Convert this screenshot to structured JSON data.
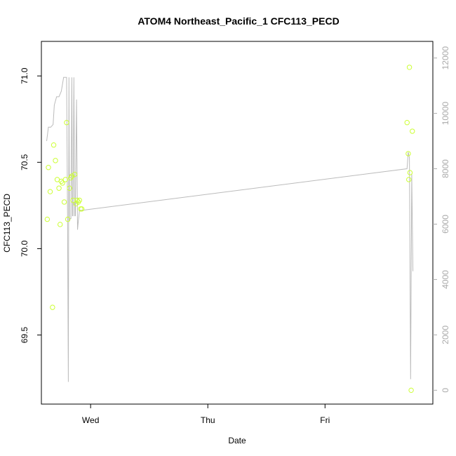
{
  "chart_data": {
    "type": "scatter",
    "title": "ATOM4 Northeast_Pacific_1 CFC113_PECD",
    "xlabel": "Date",
    "ylabel": "CFC113_PECD",
    "x_tick_labels": [
      "Wed",
      "Thu",
      "Fri"
    ],
    "x_tick_days": [
      0,
      1,
      2
    ],
    "xlim_days": [
      -0.42,
      2.92
    ],
    "ylim": [
      69.1,
      71.2
    ],
    "y_ticks": [
      69.5,
      70.0,
      70.5,
      71.0
    ],
    "y_tick_labels": [
      "69.5",
      "70.0",
      "70.5",
      "71.0"
    ],
    "y2_ticks": [
      0,
      2000,
      4000,
      6000,
      8000,
      10000,
      12000
    ],
    "y2_tick_labels": [
      "0",
      "2000",
      "4000",
      "6000",
      "8000",
      "10000",
      "12000"
    ],
    "y2lim": [
      -500,
      12600
    ],
    "colors": {
      "points": "#ccff33",
      "line": "#bbbbbb",
      "axis": "#000000",
      "right_axis": "#aaaaaa"
    },
    "series": [
      {
        "kind": "points",
        "x": [
          -0.37,
          -0.36,
          -0.345,
          -0.325,
          -0.315,
          -0.3,
          -0.285,
          -0.27,
          -0.26,
          -0.25,
          -0.24,
          -0.225,
          -0.215,
          -0.205,
          -0.195,
          -0.18,
          -0.17,
          -0.16,
          -0.15,
          -0.135,
          -0.125,
          -0.115,
          -0.105,
          -0.095,
          -0.085,
          -0.075,
          2.7,
          2.71,
          2.715,
          2.72,
          2.725,
          2.735,
          2.745
        ],
        "y": [
          70.17,
          70.47,
          70.33,
          69.66,
          70.6,
          70.51,
          70.4,
          70.35,
          70.14,
          70.39,
          70.38,
          70.27,
          70.4,
          70.73,
          70.17,
          70.35,
          70.41,
          70.42,
          70.28,
          70.43,
          70.26,
          70.28,
          70.27,
          70.28,
          70.23,
          70.23,
          70.73,
          70.55,
          70.4,
          71.05,
          70.44,
          69.18,
          70.68
        ]
      },
      {
        "kind": "line",
        "axis": "right",
        "x": [
          -0.375,
          -0.36,
          -0.34,
          -0.32,
          -0.31,
          -0.29,
          -0.27,
          -0.25,
          -0.23,
          -0.22,
          -0.205,
          -0.197,
          -0.19,
          -0.185,
          -0.18,
          -0.175,
          -0.168,
          -0.16,
          -0.155,
          -0.15,
          -0.143,
          -0.135,
          -0.13,
          -0.12,
          -0.112,
          -0.105,
          -0.095,
          -0.085,
          -0.07,
          2.7,
          2.71,
          2.72,
          2.73,
          2.74,
          2.75
        ],
        "y": [
          9000,
          9500,
          9500,
          9600,
          10300,
          10600,
          10600,
          10800,
          11300,
          11300,
          11300,
          6200,
          300,
          11300,
          6100,
          6200,
          6200,
          11300,
          6300,
          6300,
          11300,
          6300,
          6300,
          10500,
          5800,
          6100,
          6500,
          6500,
          6500,
          8000,
          8600,
          8400,
          400,
          7800,
          4300
        ]
      }
    ]
  }
}
